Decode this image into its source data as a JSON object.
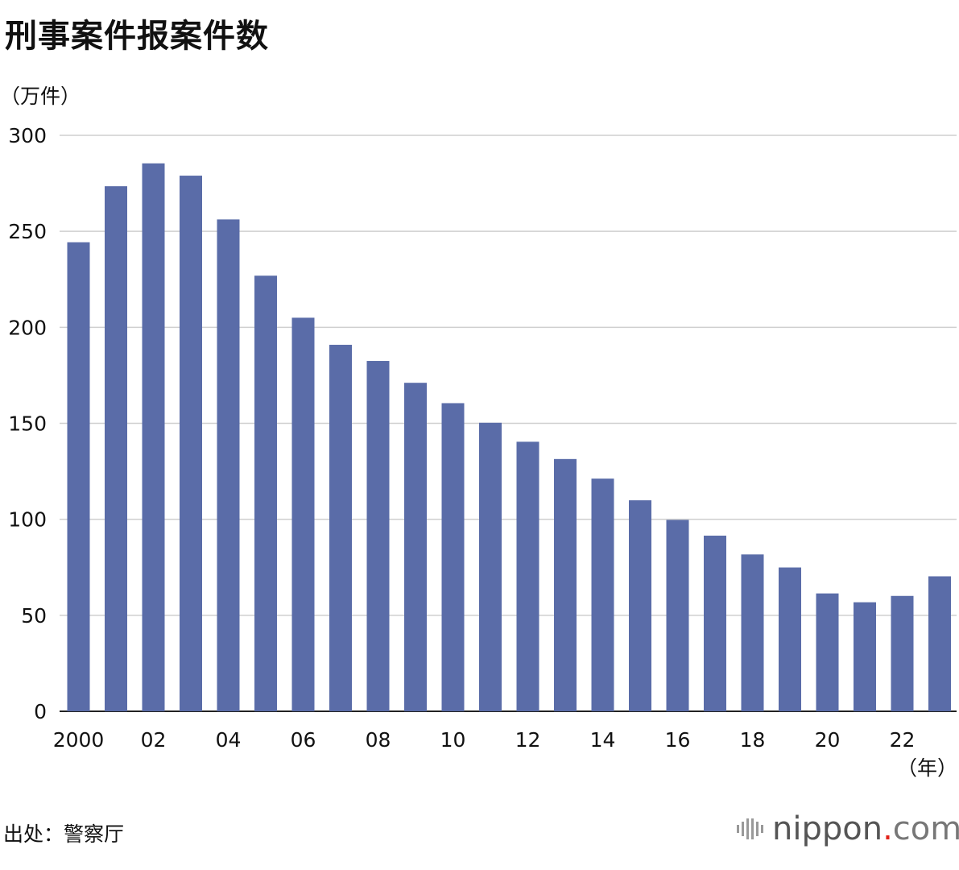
{
  "title": "刑事案件报案件数",
  "unit_label": "（万件）",
  "source": "出处：警察厅",
  "brand": {
    "name": "nippon",
    "dot": ".",
    "tld": "com",
    "color": "#e2231a"
  },
  "chart_data": {
    "type": "bar",
    "title": "刑事案件报案件数",
    "ylabel": "（万件）",
    "xlabel": "（年）",
    "ylim": [
      0,
      300
    ],
    "yticks": [
      "0",
      "50",
      "100",
      "150",
      "200",
      "250",
      "300"
    ],
    "grid": true,
    "bar_color": "#5a6ca8",
    "categories": [
      "2000",
      "01",
      "02",
      "03",
      "04",
      "05",
      "06",
      "07",
      "08",
      "09",
      "10",
      "11",
      "12",
      "13",
      "14",
      "15",
      "16",
      "17",
      "18",
      "19",
      "20",
      "21",
      "22",
      "23"
    ],
    "xtick_labels": [
      "2000",
      "",
      "02",
      "",
      "04",
      "",
      "06",
      "",
      "08",
      "",
      "10",
      "",
      "12",
      "",
      "14",
      "",
      "16",
      "",
      "18",
      "",
      "20",
      "",
      "22",
      ""
    ],
    "values": [
      244.3,
      273.5,
      285.4,
      279.0,
      256.2,
      226.9,
      205.0,
      190.9,
      182.5,
      171.1,
      160.5,
      150.3,
      140.4,
      131.4,
      121.2,
      109.9,
      99.7,
      91.5,
      81.7,
      74.9,
      61.4,
      56.8,
      60.1,
      70.3
    ]
  }
}
